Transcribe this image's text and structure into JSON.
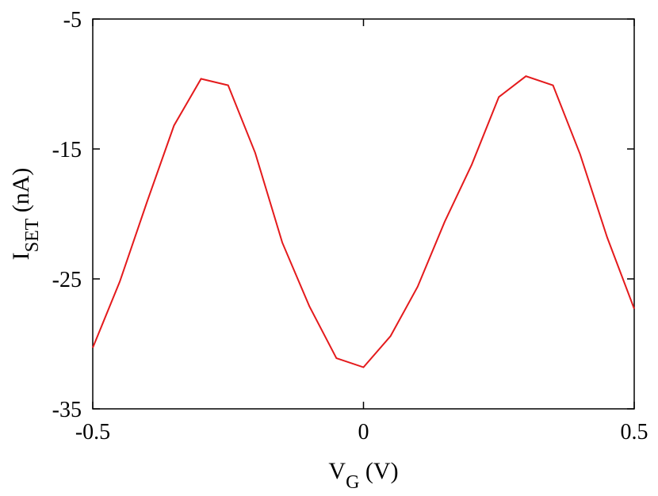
{
  "chart_data": {
    "type": "line",
    "title": "",
    "xlabel": {
      "main": "V",
      "sub": "G",
      "unit": " (V)"
    },
    "ylabel": {
      "main": "I",
      "sub": "SET",
      "unit": " (nA)"
    },
    "xlim": [
      -0.5,
      0.5
    ],
    "ylim": [
      -35,
      -5
    ],
    "xticks": [
      -0.5,
      0,
      0.5
    ],
    "xtick_labels": [
      "-0.5",
      "0",
      "0.5"
    ],
    "yticks": [
      -35,
      -25,
      -15,
      -5
    ],
    "ytick_labels": [
      "-35",
      "-25",
      "-15",
      "-5"
    ],
    "grid": false,
    "legend": "none",
    "series": [
      {
        "color": "#e41a1c",
        "x": [
          -0.5,
          -0.45,
          -0.4,
          -0.35,
          -0.3,
          -0.25,
          -0.2,
          -0.15,
          -0.1,
          -0.05,
          0.0,
          0.05,
          0.1,
          0.15,
          0.2,
          0.25,
          0.3,
          0.35,
          0.4,
          0.45,
          0.5
        ],
        "y": [
          -30.3,
          -25.2,
          -19.1,
          -13.2,
          -9.6,
          -10.1,
          -15.3,
          -22.2,
          -27.1,
          -31.1,
          -31.8,
          -29.4,
          -25.6,
          -20.6,
          -16.2,
          -11.0,
          -9.4,
          -10.1,
          -15.4,
          -21.8,
          -27.3
        ]
      }
    ]
  }
}
